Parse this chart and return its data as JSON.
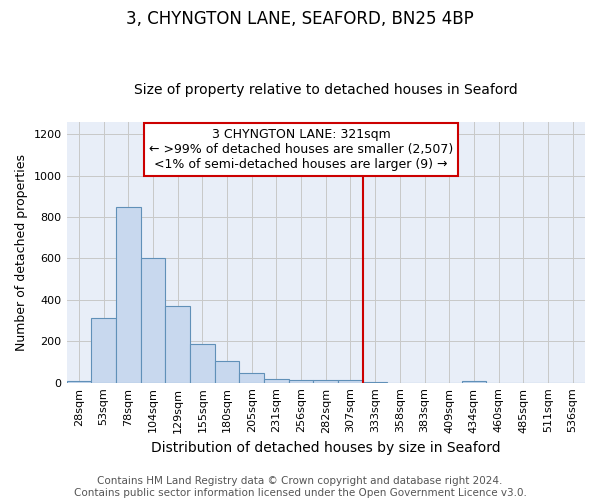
{
  "title": "3, CHYNGTON LANE, SEAFORD, BN25 4BP",
  "subtitle": "Size of property relative to detached houses in Seaford",
  "xlabel": "Distribution of detached houses by size in Seaford",
  "ylabel": "Number of detached properties",
  "bar_labels": [
    "28sqm",
    "53sqm",
    "78sqm",
    "104sqm",
    "129sqm",
    "155sqm",
    "180sqm",
    "205sqm",
    "231sqm",
    "256sqm",
    "282sqm",
    "307sqm",
    "333sqm",
    "358sqm",
    "383sqm",
    "409sqm",
    "434sqm",
    "460sqm",
    "485sqm",
    "511sqm",
    "536sqm"
  ],
  "bar_values": [
    10,
    310,
    850,
    600,
    370,
    185,
    105,
    45,
    20,
    15,
    15,
    15,
    5,
    0,
    0,
    0,
    10,
    0,
    0,
    0,
    0
  ],
  "bar_color": "#c8d8ee",
  "bar_edge_color": "#6090b8",
  "grid_color": "#c8c8c8",
  "background_color": "#e8eef8",
  "vline_color": "#cc0000",
  "vline_index": 12,
  "annotation_line1": "3 CHYNGTON LANE: 321sqm",
  "annotation_line2": "← >99% of detached houses are smaller (2,507)",
  "annotation_line3": "<1% of semi-detached houses are larger (9) →",
  "annotation_box_color": "#ffffff",
  "annotation_box_edge": "#cc0000",
  "footnote": "Contains HM Land Registry data © Crown copyright and database right 2024.\nContains public sector information licensed under the Open Government Licence v3.0.",
  "ylim": [
    0,
    1260
  ],
  "yticks": [
    0,
    200,
    400,
    600,
    800,
    1000,
    1200
  ],
  "title_fontsize": 12,
  "subtitle_fontsize": 10,
  "xlabel_fontsize": 10,
  "ylabel_fontsize": 9,
  "tick_fontsize": 8,
  "annotation_fontsize": 9,
  "footnote_fontsize": 7.5
}
